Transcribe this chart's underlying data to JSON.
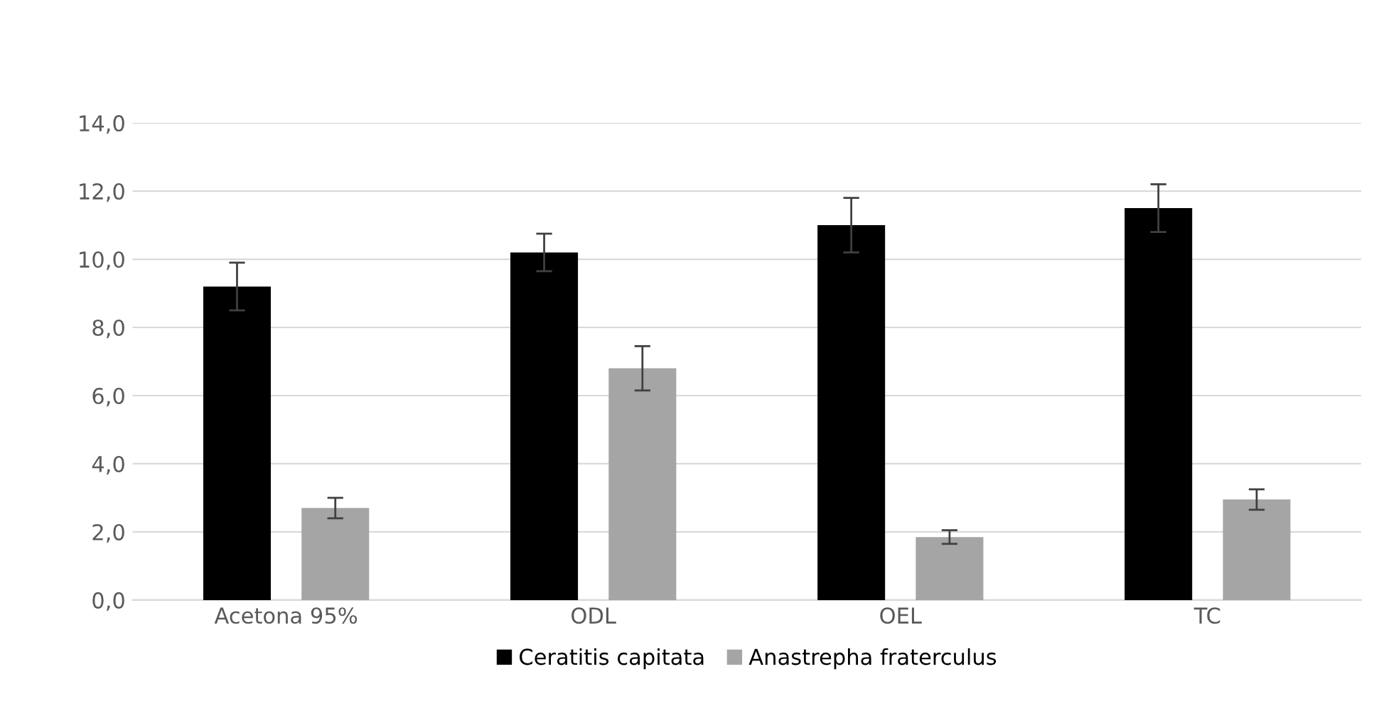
{
  "chart_data": {
    "type": "bar",
    "categories": [
      "Acetona 95%",
      "ODL",
      "OEL",
      "TC"
    ],
    "series": [
      {
        "name": "Ceratitis capitata",
        "color": "#000000",
        "values": [
          9.2,
          10.2,
          11.0,
          11.5
        ],
        "errors": [
          0.7,
          0.55,
          0.8,
          0.7
        ]
      },
      {
        "name": "Anastrepha fraterculus",
        "color": "#a5a5a5",
        "values": [
          2.7,
          6.8,
          1.85,
          2.95
        ],
        "errors": [
          0.3,
          0.65,
          0.2,
          0.3
        ]
      }
    ],
    "ylim": [
      0,
      14
    ],
    "yticks": [
      {
        "value": 0,
        "label": "0,0"
      },
      {
        "value": 2,
        "label": "2,0"
      },
      {
        "value": 4,
        "label": "4,0"
      },
      {
        "value": 6,
        "label": "6,0"
      },
      {
        "value": 8,
        "label": "8,0"
      },
      {
        "value": 10,
        "label": "10,0"
      },
      {
        "value": 12,
        "label": "12,0"
      },
      {
        "value": 14,
        "label": "14,0"
      }
    ],
    "grid": "y",
    "legend": "bottom"
  }
}
